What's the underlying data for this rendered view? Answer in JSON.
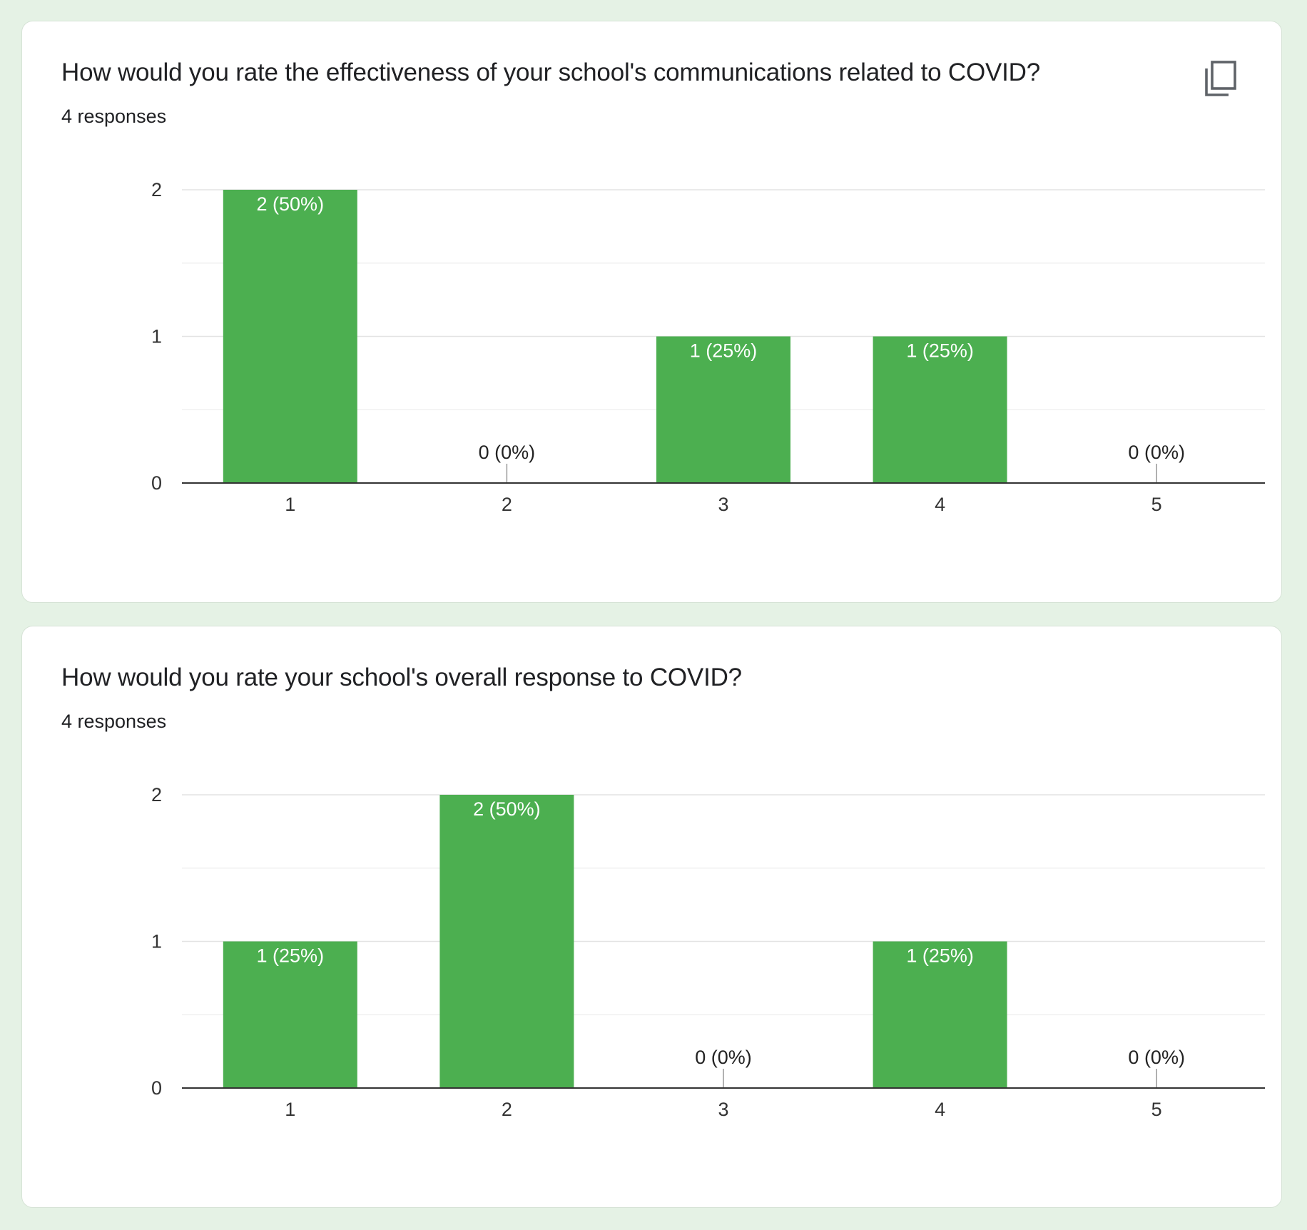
{
  "colors": {
    "background": "#e5f2e5",
    "card": "#ffffff",
    "bar": "#4caf50",
    "gridline": "#e6e6e6",
    "axis": "#333333"
  },
  "icons": {
    "copy": "copy-icon"
  },
  "cards": [
    {
      "title": "How would you rate the effectiveness of your school's communications related to COVID?",
      "responses": "4 responses",
      "show_copy_icon": true
    },
    {
      "title": "How would you rate your school's overall response to COVID?",
      "responses": "4 responses",
      "show_copy_icon": false
    }
  ],
  "chart_data": [
    {
      "type": "bar",
      "title": "How would you rate the effectiveness of your school's communications related to COVID?",
      "categories": [
        "1",
        "2",
        "3",
        "4",
        "5"
      ],
      "values": [
        2,
        0,
        1,
        1,
        0
      ],
      "data_labels": [
        "2 (50%)",
        "0 (0%)",
        "1 (25%)",
        "1 (25%)",
        "0 (0%)"
      ],
      "y_ticks": [
        "0",
        "1",
        "2"
      ],
      "ylim": [
        0,
        2
      ],
      "grid": true,
      "xlabel": "",
      "ylabel": ""
    },
    {
      "type": "bar",
      "title": "How would you rate your school's overall response to COVID?",
      "categories": [
        "1",
        "2",
        "3",
        "4",
        "5"
      ],
      "values": [
        1,
        2,
        0,
        1,
        0
      ],
      "data_labels": [
        "1 (25%)",
        "2 (50%)",
        "0 (0%)",
        "1 (25%)",
        "0 (0%)"
      ],
      "y_ticks": [
        "0",
        "1",
        "2"
      ],
      "ylim": [
        0,
        2
      ],
      "grid": true,
      "xlabel": "",
      "ylabel": ""
    }
  ]
}
